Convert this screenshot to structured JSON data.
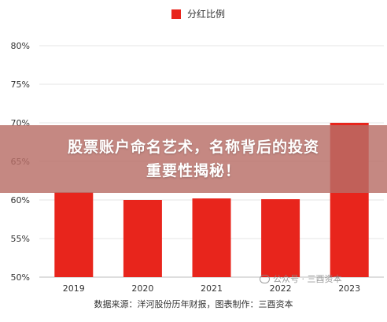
{
  "chart_data": {
    "type": "bar",
    "categories": [
      "2019",
      "2020",
      "2021",
      "2022",
      "2023"
    ],
    "series": [
      {
        "name": "分红比例",
        "values": [
          61,
          60,
          60.2,
          60.1,
          70
        ]
      }
    ],
    "ylim": [
      50,
      80
    ],
    "yticks": [
      "50%",
      "55%",
      "60%",
      "65%",
      "70%",
      "75%",
      "80%"
    ],
    "grid": true,
    "legend": "top-center",
    "bar_color": "#e8251c"
  },
  "source_note": "数据来源：洋河股份历年财报，图表制作：三酉资本",
  "watermark": "公众号 · 三酉资本",
  "overlay": {
    "line1": "股票账户命名艺术，名称背后的投资",
    "line2": "重要性揭秘！"
  }
}
